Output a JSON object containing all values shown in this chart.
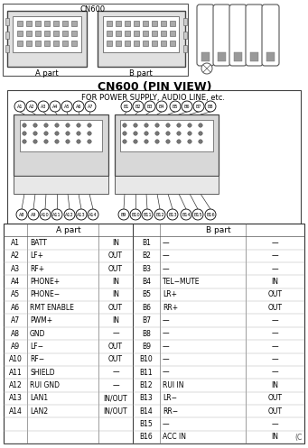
{
  "title": "CN600 (PIN VIEW)",
  "subtitle": "FOR POWER SUPPLY, AUDIO LINE, etc.",
  "figsize": [
    3.41,
    4.97
  ],
  "dpi": 100,
  "bg_color": "#ffffff",
  "table_header_a": "A part",
  "table_header_b": "B part",
  "a_pins": [
    {
      "pin": "A1",
      "name": "BATT",
      "dir": "IN"
    },
    {
      "pin": "A2",
      "name": "LF+",
      "dir": "OUT"
    },
    {
      "pin": "A3",
      "name": "RF+",
      "dir": "OUT"
    },
    {
      "pin": "A4",
      "name": "PHONE+",
      "dir": "IN"
    },
    {
      "pin": "A5",
      "name": "PHONE−",
      "dir": "IN"
    },
    {
      "pin": "A6",
      "name": "RMT ENABLE",
      "dir": "OUT"
    },
    {
      "pin": "A7",
      "name": "PWM+",
      "dir": "IN"
    },
    {
      "pin": "A8",
      "name": "GND",
      "dir": "—"
    },
    {
      "pin": "A9",
      "name": "LF−",
      "dir": "OUT"
    },
    {
      "pin": "A10",
      "name": "RF−",
      "dir": "OUT"
    },
    {
      "pin": "A11",
      "name": "SHIELD",
      "dir": "—"
    },
    {
      "pin": "A12",
      "name": "RUI GND",
      "dir": "—"
    },
    {
      "pin": "A13",
      "name": "LAN1",
      "dir": "IN/OUT"
    },
    {
      "pin": "A14",
      "name": "LAN2",
      "dir": "IN/OUT"
    }
  ],
  "b_pins": [
    {
      "pin": "B1",
      "name": "—",
      "dir": "—"
    },
    {
      "pin": "B2",
      "name": "—",
      "dir": "—"
    },
    {
      "pin": "B3",
      "name": "—",
      "dir": "—"
    },
    {
      "pin": "B4",
      "name": "TEL−MUTE",
      "dir": "IN"
    },
    {
      "pin": "B5",
      "name": "LR+",
      "dir": "OUT"
    },
    {
      "pin": "B6",
      "name": "RR+",
      "dir": "OUT"
    },
    {
      "pin": "B7",
      "name": "—",
      "dir": "—"
    },
    {
      "pin": "B8",
      "name": "—",
      "dir": "—"
    },
    {
      "pin": "B9",
      "name": "—",
      "dir": "—"
    },
    {
      "pin": "B10",
      "name": "—",
      "dir": "—"
    },
    {
      "pin": "B11",
      "name": "—",
      "dir": "—"
    },
    {
      "pin": "B12",
      "name": "RUI IN",
      "dir": "IN"
    },
    {
      "pin": "B13",
      "name": "LR−",
      "dir": "OUT"
    },
    {
      "pin": "B14",
      "name": "RR−",
      "dir": "OUT"
    },
    {
      "pin": "B15",
      "name": "—",
      "dir": "—"
    },
    {
      "pin": "B16",
      "name": "ACC IN",
      "dir": "IN"
    }
  ],
  "top_pins_a": [
    "A1",
    "A2",
    "A3",
    "A4",
    "A5",
    "A6",
    "A7"
  ],
  "top_pins_b": [
    "B1",
    "B2",
    "B3",
    "B4",
    "B5",
    "B6",
    "B7",
    "B8"
  ],
  "bot_pins_a": [
    "A8",
    "A9",
    "A10",
    "A11",
    "A12",
    "A13",
    "A14"
  ],
  "bot_pins_b": [
    "B9",
    "B10",
    "B11",
    "B12",
    "B13",
    "B14",
    "B15",
    "B16"
  ],
  "copyright": "(C"
}
